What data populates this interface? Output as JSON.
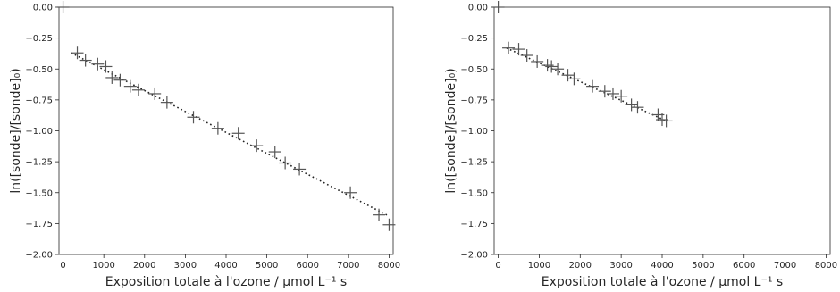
{
  "chart_data": [
    {
      "type": "scatter",
      "title": "",
      "xlabel": "Exposition totale à l'ozone / μmol L⁻¹ s",
      "ylabel": "ln([sonde]/[sonde]₀)",
      "xlim": [
        -100,
        8100
      ],
      "ylim": [
        -2.0,
        0.0
      ],
      "xticks": [
        "0",
        "1000",
        "2000",
        "3000",
        "4000",
        "5000",
        "6000",
        "7000",
        "8000"
      ],
      "yticks": [
        "0.00",
        "−0.25",
        "−0.50",
        "−0.75",
        "−1.00",
        "−1.25",
        "−1.50",
        "−1.75",
        "−2.00"
      ],
      "grid": false,
      "marker": "plus",
      "series": [
        {
          "points": [
            [
              0,
              0.0
            ],
            [
              350,
              -0.37
            ],
            [
              550,
              -0.43
            ],
            [
              850,
              -0.46
            ],
            [
              1050,
              -0.48
            ],
            [
              1200,
              -0.57
            ],
            [
              1400,
              -0.59
            ],
            [
              1650,
              -0.64
            ],
            [
              1850,
              -0.67
            ],
            [
              2250,
              -0.7
            ],
            [
              2550,
              -0.77
            ],
            [
              3200,
              -0.89
            ],
            [
              3800,
              -0.98
            ],
            [
              4300,
              -1.02
            ],
            [
              4750,
              -1.12
            ],
            [
              5200,
              -1.17
            ],
            [
              5450,
              -1.26
            ],
            [
              5800,
              -1.31
            ],
            [
              7050,
              -1.5
            ],
            [
              7750,
              -1.68
            ],
            [
              8000,
              -1.76
            ]
          ]
        }
      ],
      "fit_line": {
        "style": "dotted",
        "x": [
          200,
          8000
        ],
        "y": [
          -0.37,
          -1.69
        ]
      }
    },
    {
      "type": "scatter",
      "title": "",
      "xlabel": "Exposition totale à l'ozone / μmol L⁻¹ s",
      "ylabel": "ln([sonde]/[sonde]₀)",
      "xlim": [
        -100,
        8100
      ],
      "ylim": [
        -2.0,
        0.0
      ],
      "xticks": [
        "0",
        "1000",
        "2000",
        "3000",
        "4000",
        "5000",
        "6000",
        "7000",
        "8000"
      ],
      "yticks": [
        "0.00",
        "−0.25",
        "−0.50",
        "−0.75",
        "−1.00",
        "−1.25",
        "−1.50",
        "−1.75",
        "−2.00"
      ],
      "grid": false,
      "marker": "plus",
      "series": [
        {
          "points": [
            [
              0,
              0.0
            ],
            [
              250,
              -0.33
            ],
            [
              500,
              -0.34
            ],
            [
              700,
              -0.39
            ],
            [
              950,
              -0.44
            ],
            [
              1200,
              -0.47
            ],
            [
              1300,
              -0.48
            ],
            [
              1450,
              -0.5
            ],
            [
              1700,
              -0.55
            ],
            [
              1850,
              -0.58
            ],
            [
              2300,
              -0.64
            ],
            [
              2600,
              -0.68
            ],
            [
              2800,
              -0.7
            ],
            [
              3000,
              -0.72
            ],
            [
              3250,
              -0.79
            ],
            [
              3400,
              -0.81
            ],
            [
              3900,
              -0.87
            ],
            [
              4000,
              -0.91
            ],
            [
              4100,
              -0.92
            ]
          ]
        }
      ],
      "fit_line": {
        "style": "dotted",
        "x": [
          200,
          4100
        ],
        "y": [
          -0.33,
          -0.92
        ]
      }
    }
  ]
}
